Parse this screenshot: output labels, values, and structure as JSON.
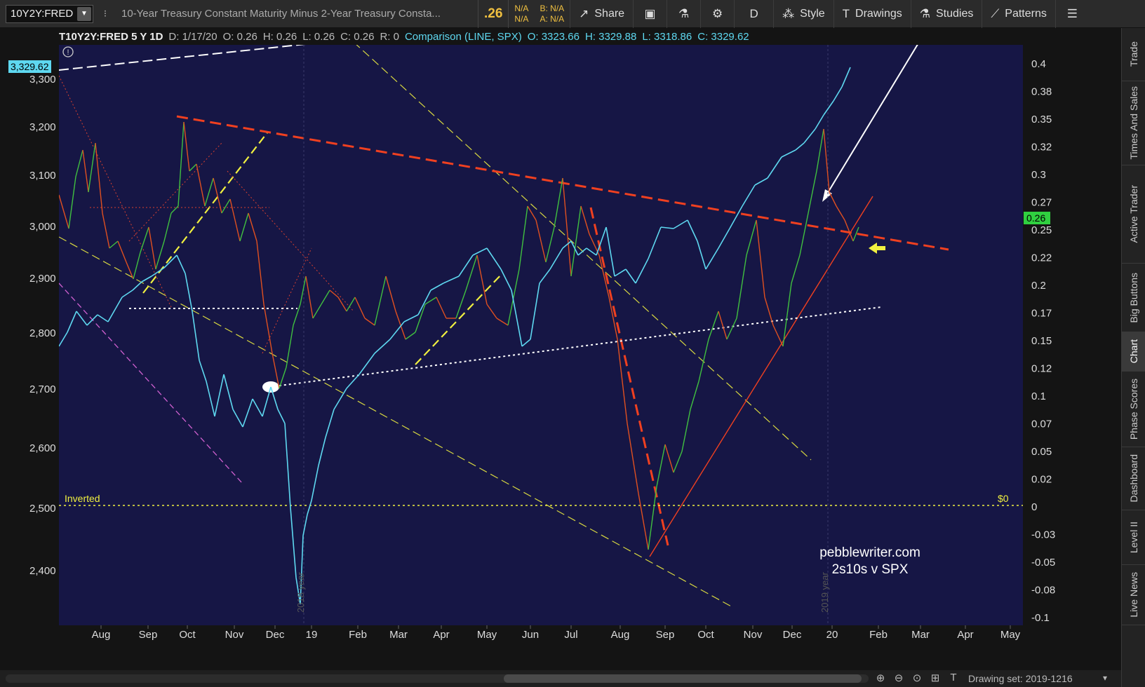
{
  "toolbar": {
    "symbol": "10Y2Y:FRED",
    "description": "10-Year Treasury Constant Maturity Minus 2-Year Treasury Consta...",
    "last": ".26",
    "quote_left": [
      "N/A",
      "N/A"
    ],
    "quote_right": [
      "B: N/A",
      "A: N/A"
    ],
    "share": "Share",
    "period": "D",
    "style": "Style",
    "drawings": "Drawings",
    "studies": "Studies",
    "patterns": "Patterns"
  },
  "infobar": {
    "symbol": "T10Y2Y:FRED 5 Y 1D",
    "date": "D: 1/17/20",
    "open": "O: 0.26",
    "high": "H: 0.26",
    "low": "L: 0.26",
    "close": "C: 0.26",
    "range": "R: 0",
    "comparison": "Comparison (LINE, SPX)",
    "cmp_open": "O: 3323.66",
    "cmp_high": "H: 3329.88",
    "cmp_low": "L: 3318.86",
    "cmp_close": "C: 3329.62"
  },
  "chart_data": {
    "type": "line",
    "left_axis": {
      "ticks": [
        "3,300",
        "3,200",
        "3,100",
        "3,000",
        "2,900",
        "2,800",
        "2,700",
        "2,600",
        "2,500",
        "2,400"
      ],
      "last_label": "3,329.62"
    },
    "right_axis": {
      "ticks": [
        "0.4",
        "0.38",
        "0.35",
        "0.32",
        "0.3",
        "0.27",
        "0.25",
        "0.22",
        "0.2",
        "0.17",
        "0.15",
        "0.12",
        "0.1",
        "0.07",
        "0.05",
        "0.02",
        "0",
        "-0.03",
        "-0.05",
        "-0.08",
        "-0.1"
      ],
      "last_label": "0.26"
    },
    "x_labels": [
      "Aug",
      "Sep",
      "Oct",
      "Nov",
      "Dec",
      "19",
      "Feb",
      "Mar",
      "Apr",
      "May",
      "Jun",
      "Jul",
      "Aug",
      "Sep",
      "Oct",
      "Nov",
      "Dec",
      "20",
      "Feb",
      "Mar",
      "Apr",
      "May"
    ],
    "year_markers": [
      "2018 year",
      "2019 year"
    ],
    "annotations": {
      "inverted": "Inverted",
      "zero": "$0",
      "watermark_1": "pebblewriter.com",
      "watermark_2": "2s10s v SPX"
    },
    "series": [
      {
        "name": "T10Y2Y:FRED",
        "color": "#e05020"
      },
      {
        "name": "SPX",
        "color": "#5ed8f0"
      }
    ]
  },
  "side_tabs": [
    "Trade",
    "Times And Sales",
    "Active Trader",
    "Big Buttons",
    "Chart",
    "Phase Scores",
    "Dashboard",
    "Level II",
    "Live News"
  ],
  "bottom": {
    "drawing_set": "Drawing set: 2019-1216"
  }
}
